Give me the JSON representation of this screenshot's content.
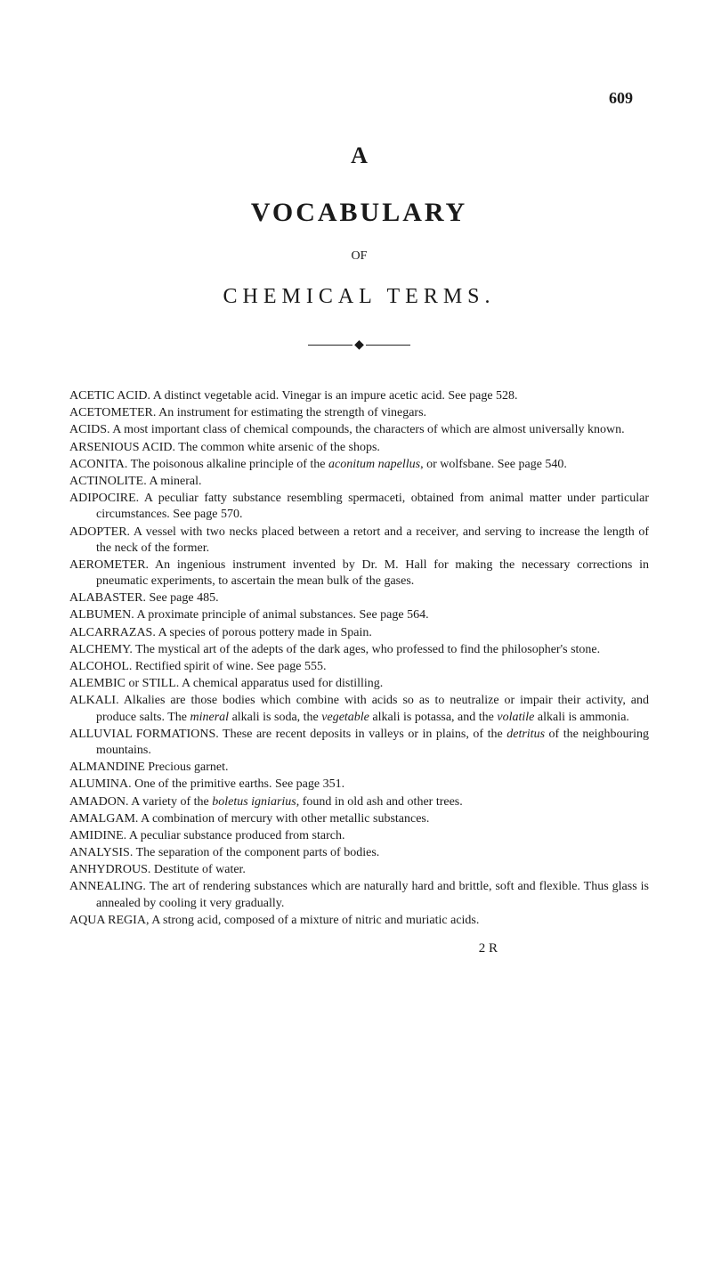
{
  "page_number": "609",
  "letter_heading": "A",
  "main_title": "VOCABULARY",
  "or_text": "OF",
  "subtitle": "CHEMICAL TERMS.",
  "signature": "2 R",
  "entries": [
    {
      "term": "ACETIC ACID.",
      "def": "A distinct vegetable acid. Vinegar is an impure acetic acid. See page 528."
    },
    {
      "term": "ACETOMETER.",
      "def": "An instrument for estimating the strength of vinegars."
    },
    {
      "term": "ACIDS.",
      "def": "A most important class of chemical compounds, the characters of which are almost universally known."
    },
    {
      "term": "ARSENIOUS ACID.",
      "def": "The common white arsenic of the shops."
    },
    {
      "term": "ACONITA.",
      "def_parts": [
        "The poisonous alkaline principle of the ",
        {
          "i": "aconitum napellus"
        },
        ", or wolfsbane. See page 540."
      ]
    },
    {
      "term": "ACTINOLITE.",
      "def": "A mineral."
    },
    {
      "term": "ADIPOCIRE.",
      "def": "A peculiar fatty substance resembling spermaceti, obtained from animal matter under particular circumstances. See page 570."
    },
    {
      "term": "ADOPTER.",
      "def": "A vessel with two necks placed between a retort and a receiver, and serving to increase the length of the neck of the former."
    },
    {
      "term": "AEROMETER.",
      "def": "An ingenious instrument invented by Dr. M. Hall for making the necessary corrections in pneumatic experiments, to ascertain the mean bulk of the gases."
    },
    {
      "term": "ALABASTER.",
      "def": "See page 485."
    },
    {
      "term": "ALBUMEN.",
      "def": "A proximate principle of animal substances. See page 564."
    },
    {
      "term": "ALCARRAZAS.",
      "def": "A species of porous pottery made in Spain."
    },
    {
      "term": "ALCHEMY.",
      "def": "The mystical art of the adepts of the dark ages, who professed to find the philosopher's stone."
    },
    {
      "term": "ALCOHOL.",
      "def": "Rectified spirit of wine. See page 555."
    },
    {
      "term": "ALEMBIC or STILL.",
      "def": "A chemical apparatus used for distilling."
    },
    {
      "term": "ALKALI.",
      "def_parts": [
        "Alkalies are those bodies which combine with acids so as to neutralize or impair their activity, and produce salts. The ",
        {
          "i": "mineral"
        },
        " alkali is soda, the ",
        {
          "i": "vegetable"
        },
        " alkali is potassa, and the ",
        {
          "i": "volatile"
        },
        " alkali is ammonia."
      ]
    },
    {
      "term": "ALLUVIAL FORMATIONS.",
      "def_parts": [
        "These are recent deposits in valleys or in plains, of the ",
        {
          "i": "detritus"
        },
        " of the neighbouring mountains."
      ]
    },
    {
      "term": "ALMANDINE",
      "def": "Precious garnet."
    },
    {
      "term": "ALUMINA.",
      "def": "One of the primitive earths. See page 351."
    },
    {
      "term": "AMADON.",
      "def_parts": [
        "A variety of the ",
        {
          "i": "boletus igniarius"
        },
        ", found in old ash and other trees."
      ]
    },
    {
      "term": "AMALGAM.",
      "def": "A combination of mercury with other metallic substances."
    },
    {
      "term": "AMIDINE.",
      "def": "A peculiar substance produced from starch."
    },
    {
      "term": "ANALYSIS.",
      "def": "The separation of the component parts of bodies."
    },
    {
      "term": "ANHYDROUS.",
      "def": "Destitute of water."
    },
    {
      "term": "ANNEALING.",
      "def": "The art of rendering substances which are naturally hard and brittle, soft and flexible. Thus glass is annealed by cooling it very gradually."
    },
    {
      "term": "AQUA REGIA,",
      "def": "A strong acid, composed of a mixture of nitric and mu­riatic acids."
    }
  ]
}
